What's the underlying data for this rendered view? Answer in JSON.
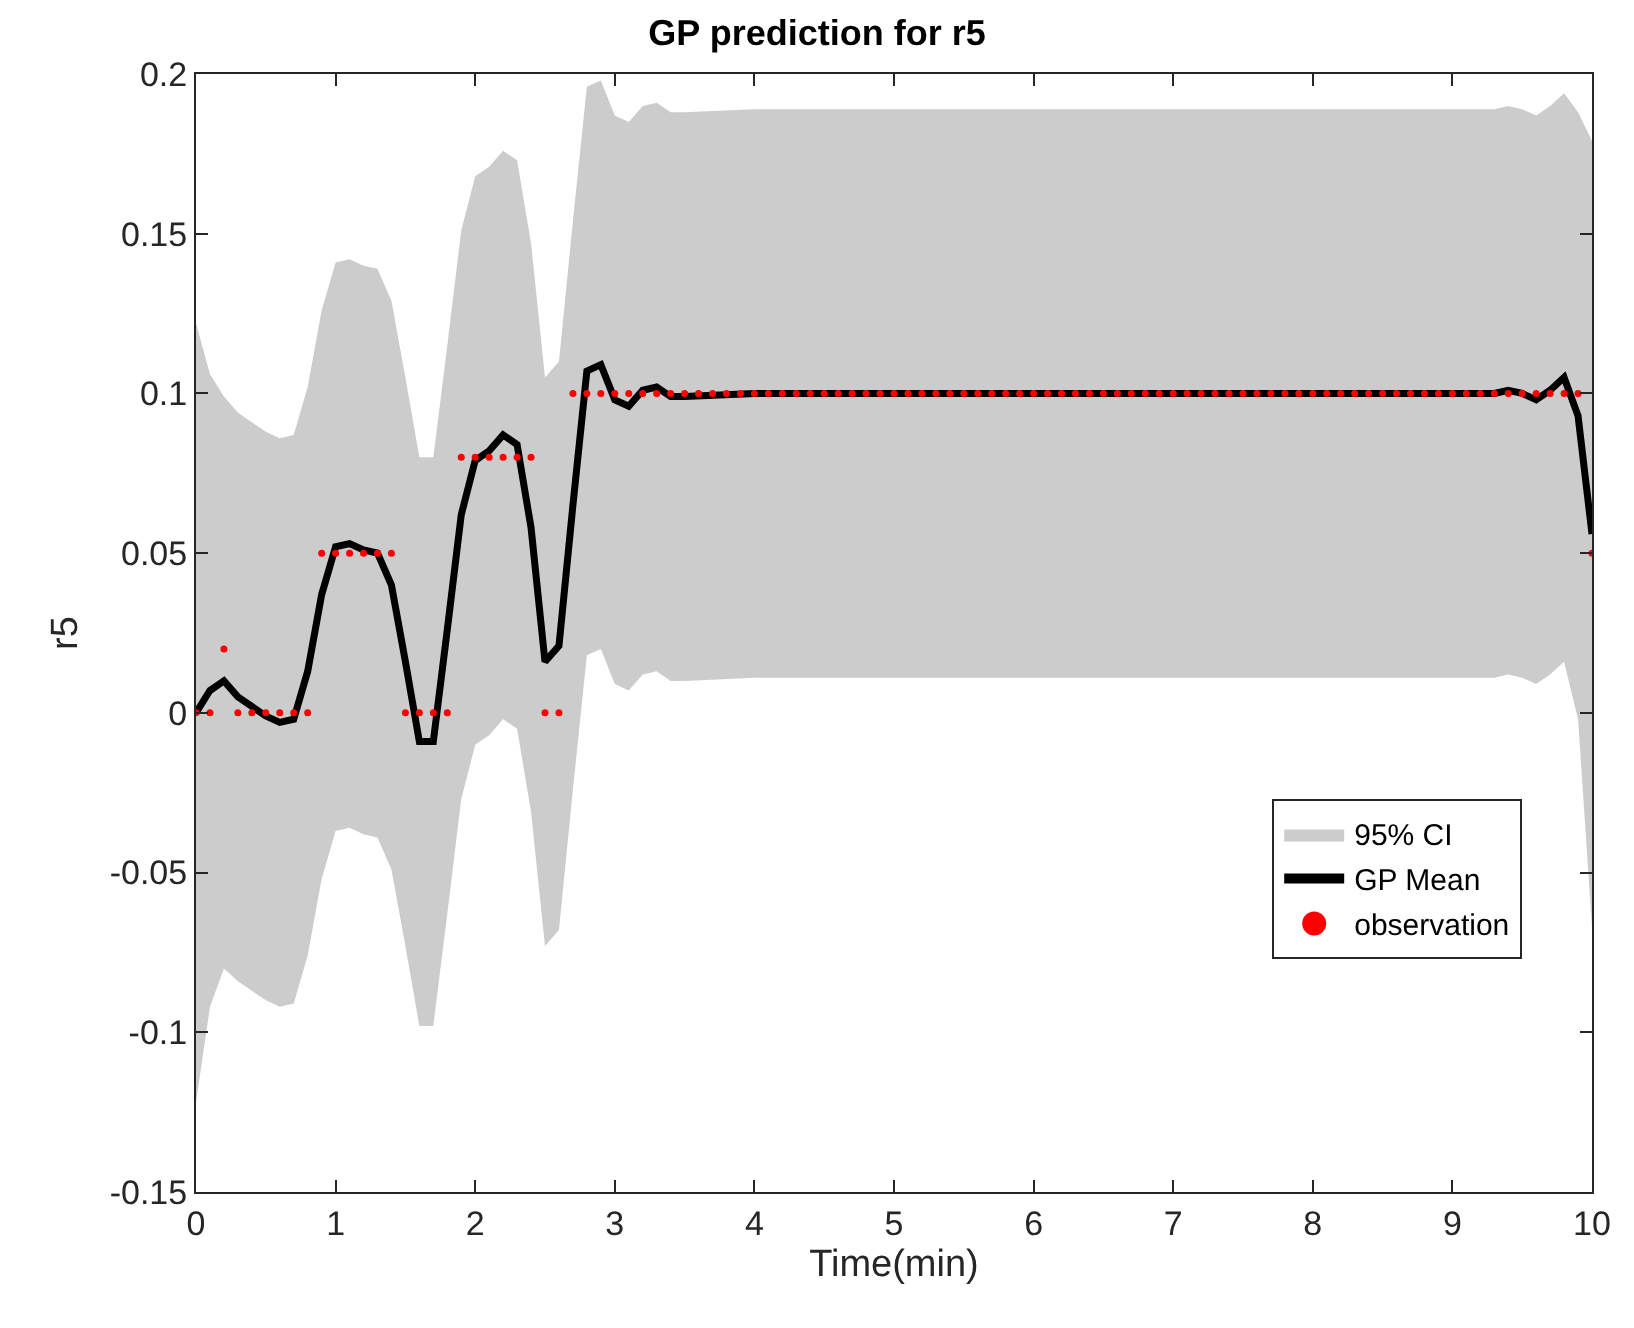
{
  "chart_data": {
    "type": "line",
    "title": "GP prediction for r5",
    "xlabel": "Time(min)",
    "ylabel": "r5",
    "xlim": [
      0,
      10
    ],
    "xticks": [
      0,
      1,
      2,
      3,
      4,
      5,
      6,
      7,
      8,
      9,
      10
    ],
    "ylim": [
      -0.15,
      0.2
    ],
    "yticks": [
      -0.15,
      -0.1,
      -0.05,
      0,
      0.05,
      0.1,
      0.15,
      0.2
    ],
    "grid": false,
    "legend": "right",
    "series": [
      {
        "name": "95% CI",
        "type": "area",
        "color": "#cccccc"
      },
      {
        "name": "GP Mean",
        "color": "#000000",
        "marker": "none",
        "line_style": "solid",
        "x": [
          0,
          0.1,
          0.2,
          0.3,
          0.4,
          0.5,
          0.6,
          0.7,
          0.8,
          0.9,
          1.0,
          1.1,
          1.2,
          1.3,
          1.4,
          1.5,
          1.6,
          1.7,
          1.8,
          1.9,
          2.0,
          2.1,
          2.2,
          2.3,
          2.4,
          2.5,
          2.6,
          2.7,
          2.8,
          2.9,
          3.0,
          3.1,
          3.2,
          3.3,
          3.4,
          3.5,
          4,
          4.5,
          5,
          5.5,
          6,
          6.5,
          7,
          7.5,
          8,
          8.5,
          9,
          9.1,
          9.2,
          9.3,
          9.4,
          9.5,
          9.6,
          9.7,
          9.8,
          9.9,
          10
        ],
        "values": [
          0,
          0.007,
          0.01,
          0.005,
          0.002,
          -0.001,
          -0.003,
          -0.002,
          0.013,
          0.037,
          0.052,
          0.053,
          0.051,
          0.05,
          0.04,
          0.016,
          -0.009,
          -0.009,
          0.026,
          0.062,
          0.079,
          0.082,
          0.087,
          0.084,
          0.058,
          0.016,
          0.021,
          0.065,
          0.107,
          0.109,
          0.098,
          0.096,
          0.101,
          0.102,
          0.099,
          0.099,
          0.1,
          0.1,
          0.1,
          0.1,
          0.1,
          0.1,
          0.1,
          0.1,
          0.1,
          0.1,
          0.1,
          0.1,
          0.1,
          0.1,
          0.101,
          0.1,
          0.098,
          0.101,
          0.105,
          0.093,
          0.056
        ],
        "upper": [
          0.122,
          0.106,
          0.099,
          0.094,
          0.091,
          0.088,
          0.086,
          0.087,
          0.102,
          0.126,
          0.141,
          0.142,
          0.14,
          0.139,
          0.129,
          0.105,
          0.08,
          0.08,
          0.115,
          0.151,
          0.168,
          0.171,
          0.176,
          0.173,
          0.147,
          0.105,
          0.11,
          0.154,
          0.196,
          0.198,
          0.187,
          0.185,
          0.19,
          0.191,
          0.188,
          0.188,
          0.189,
          0.189,
          0.189,
          0.189,
          0.189,
          0.189,
          0.189,
          0.189,
          0.189,
          0.189,
          0.189,
          0.189,
          0.189,
          0.189,
          0.19,
          0.189,
          0.187,
          0.19,
          0.194,
          0.188,
          0.179
        ],
        "lower": [
          -0.122,
          -0.092,
          -0.08,
          -0.084,
          -0.087,
          -0.09,
          -0.092,
          -0.091,
          -0.076,
          -0.052,
          -0.037,
          -0.036,
          -0.038,
          -0.039,
          -0.049,
          -0.073,
          -0.098,
          -0.098,
          -0.063,
          -0.027,
          -0.01,
          -0.007,
          -0.002,
          -0.005,
          -0.031,
          -0.073,
          -0.068,
          -0.024,
          0.018,
          0.02,
          0.009,
          0.007,
          0.012,
          0.013,
          0.01,
          0.01,
          0.011,
          0.011,
          0.011,
          0.011,
          0.011,
          0.011,
          0.011,
          0.011,
          0.011,
          0.011,
          0.011,
          0.011,
          0.011,
          0.011,
          0.012,
          0.011,
          0.009,
          0.012,
          0.016,
          -0.002,
          -0.067
        ]
      },
      {
        "name": "observation",
        "type": "scatter",
        "color": "#ff0000",
        "marker": "circle",
        "x": [
          0,
          0.1,
          0.2,
          0.3,
          0.4,
          0.5,
          0.6,
          0.7,
          0.8,
          0.9,
          1.0,
          1.1,
          1.2,
          1.3,
          1.4,
          1.5,
          1.6,
          1.7,
          1.8,
          1.9,
          2.0,
          2.1,
          2.2,
          2.3,
          2.4,
          2.5,
          2.6,
          2.7,
          2.8,
          2.9,
          3.0,
          3.1,
          3.2,
          3.3,
          3.4,
          3.5,
          3.6,
          3.7,
          3.8,
          3.9,
          4.0,
          4.1,
          4.2,
          4.3,
          4.4,
          4.5,
          4.6,
          4.7,
          4.8,
          4.9,
          5.0,
          5.1,
          5.2,
          5.3,
          5.4,
          5.5,
          5.6,
          5.7,
          5.8,
          5.9,
          6.0,
          6.1,
          6.2,
          6.3,
          6.4,
          6.5,
          6.6,
          6.7,
          6.8,
          6.9,
          7.0,
          7.1,
          7.2,
          7.3,
          7.4,
          7.5,
          7.6,
          7.7,
          7.8,
          7.9,
          8.0,
          8.1,
          8.2,
          8.3,
          8.4,
          8.5,
          8.6,
          8.7,
          8.8,
          8.9,
          9.0,
          9.1,
          9.2,
          9.3,
          9.4,
          9.5,
          9.6,
          9.7,
          9.8,
          9.9,
          10
        ],
        "values": [
          0,
          0,
          0.02,
          0,
          0,
          0,
          0,
          0,
          0,
          0.05,
          0.05,
          0.05,
          0.05,
          0.05,
          0.05,
          0,
          0,
          0,
          0,
          0.08,
          0.08,
          0.08,
          0.08,
          0.08,
          0.08,
          0,
          0,
          0.1,
          0.1,
          0.1,
          0.1,
          0.1,
          0.1,
          0.1,
          0.1,
          0.1,
          0.1,
          0.1,
          0.1,
          0.1,
          0.1,
          0.1,
          0.1,
          0.1,
          0.1,
          0.1,
          0.1,
          0.1,
          0.1,
          0.1,
          0.1,
          0.1,
          0.1,
          0.1,
          0.1,
          0.1,
          0.1,
          0.1,
          0.1,
          0.1,
          0.1,
          0.1,
          0.1,
          0.1,
          0.1,
          0.1,
          0.1,
          0.1,
          0.1,
          0.1,
          0.1,
          0.1,
          0.1,
          0.1,
          0.1,
          0.1,
          0.1,
          0.1,
          0.1,
          0.1,
          0.1,
          0.1,
          0.1,
          0.1,
          0.1,
          0.1,
          0.1,
          0.1,
          0.1,
          0.1,
          0.1,
          0.1,
          0.1,
          0.1,
          0.1,
          0.1,
          0.1,
          0.1,
          0.1,
          0.1,
          0.05
        ]
      }
    ]
  }
}
